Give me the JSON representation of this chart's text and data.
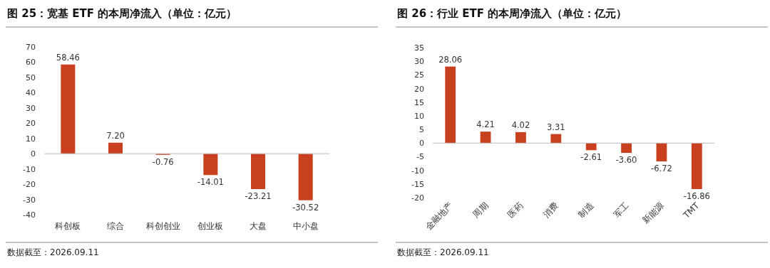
{
  "chart_data": [
    {
      "type": "bar",
      "title": "图 25：宽基 ETF 的本周净流入（单位：亿元）",
      "categories": [
        "科创板",
        "综合",
        "科创创业",
        "创业板",
        "大盘",
        "中小盘"
      ],
      "values": [
        58.46,
        7.2,
        -0.76,
        -14.01,
        -23.21,
        -30.52
      ],
      "value_labels": [
        "58.46",
        "7.20",
        "-0.76",
        "-14.01",
        "-23.21",
        "-30.52"
      ],
      "color": "#c8401e",
      "ylim": [
        -40,
        70
      ],
      "yticks": [
        -40,
        -30,
        -20,
        -10,
        0,
        10,
        20,
        30,
        40,
        50,
        60,
        70
      ],
      "annotations": [
        "数据截至：2026.09.11"
      ]
    },
    {
      "type": "bar",
      "title": "图 26：行业 ETF 的本周净流入（单位：亿元）",
      "categories": [
        "金融地产",
        "周期",
        "医药",
        "消费",
        "制造",
        "军工",
        "新能源",
        "TMT"
      ],
      "values": [
        28.06,
        4.21,
        4.02,
        3.31,
        -2.61,
        -3.6,
        -6.72,
        -16.86
      ],
      "value_labels": [
        "28.06",
        "4.21",
        "4.02",
        "3.31",
        "-2.61",
        "-3.60",
        "-6.72",
        "-16.86"
      ],
      "color": "#c8401e",
      "ylim": [
        -20,
        35
      ],
      "yticks": [
        -20,
        -15,
        -10,
        -5,
        0,
        5,
        10,
        15,
        20,
        25,
        30,
        35
      ],
      "annotations": [
        "数据截至：2026.09.11"
      ]
    }
  ]
}
